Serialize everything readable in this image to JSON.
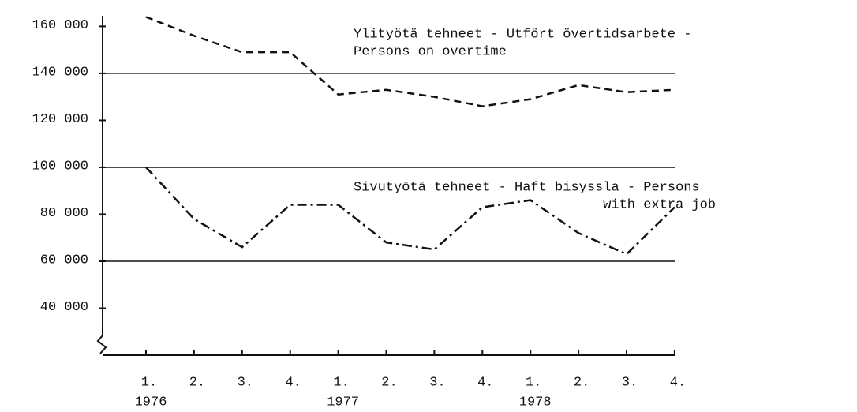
{
  "chart_data": {
    "type": "line",
    "categories": [
      "1.",
      "2.",
      "3.",
      "4.",
      "1.",
      "2.",
      "3.",
      "4.",
      "1.",
      "2.",
      "3.",
      "4."
    ],
    "years": [
      "1976",
      "1977",
      "1978"
    ],
    "series": [
      {
        "name": [
          "Ylityötä tehneet - Utfört övertidsarbete -",
          "Persons on overtime"
        ],
        "color": "#111111",
        "dash": "dashed",
        "values": [
          164000,
          156000,
          149000,
          149000,
          131000,
          133000,
          130000,
          126000,
          129000,
          135000,
          132000,
          133000
        ]
      },
      {
        "name": [
          "Sivutyötä tehneet - Haft bisyssla - Persons",
          "with extra job"
        ],
        "color": "#111111",
        "dash": "dashdot",
        "values": [
          100000,
          78000,
          66000,
          84000,
          84000,
          68000,
          65000,
          83000,
          86000,
          72000,
          63000,
          83000
        ]
      }
    ],
    "ylim": [
      20000,
      164500
    ],
    "yticks": [
      {
        "value": 160000,
        "label": "160 000"
      },
      {
        "value": 140000,
        "label": "140 000"
      },
      {
        "value": 120000,
        "label": "120 000"
      },
      {
        "value": 100000,
        "label": "100 000"
      },
      {
        "value": 80000,
        "label": "80 000"
      },
      {
        "value": 60000,
        "label": "60 000"
      },
      {
        "value": 40000,
        "label": "40 000"
      }
    ],
    "gridlines": [
      140000,
      100000,
      60000
    ]
  }
}
